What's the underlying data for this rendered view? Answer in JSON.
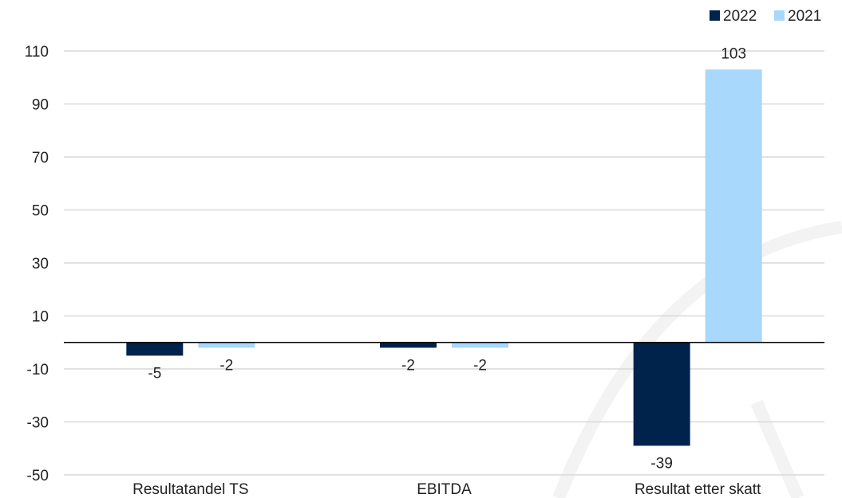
{
  "chart_data": {
    "type": "bar",
    "title": "",
    "xlabel": "",
    "ylabel": "",
    "categories": [
      "Resultatandel TS",
      "EBITDA",
      "Resultat etter skatt"
    ],
    "series": [
      {
        "name": "2022",
        "values": [
          -5,
          -2,
          -39
        ],
        "labels": [
          "-5",
          "-2",
          "-39"
        ]
      },
      {
        "name": "2021",
        "values": [
          -2,
          -2,
          103
        ],
        "labels": [
          "-2",
          "-2",
          "103"
        ]
      }
    ],
    "ylim": [
      -50,
      110
    ],
    "yticks": [
      110,
      90,
      70,
      50,
      30,
      10,
      -10,
      -30,
      -50
    ],
    "grid": true,
    "legend_position": "top-right"
  },
  "colors": {
    "series_2022": "#00234c",
    "series_2021": "#a8d8fb",
    "grid": "#d9d9d9",
    "axis": "#000000"
  }
}
